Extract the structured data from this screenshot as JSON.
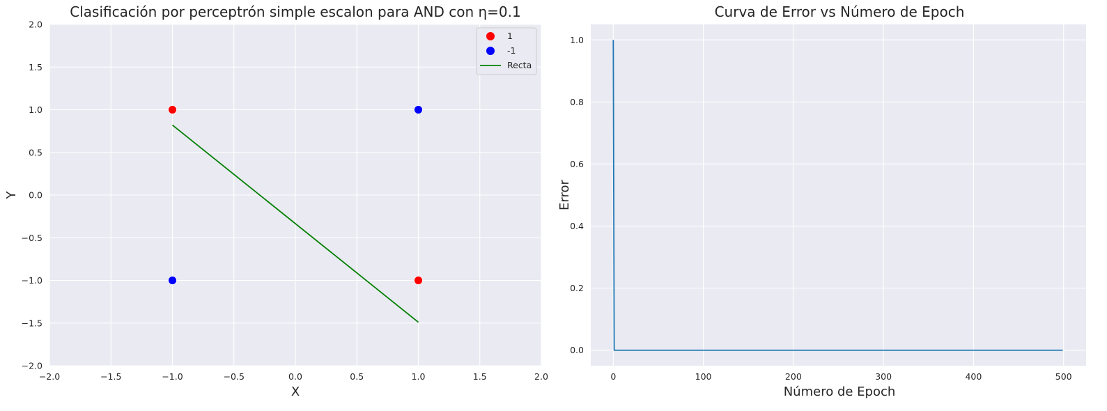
{
  "chart_data": [
    {
      "type": "scatter",
      "title": "Clasificación por perceptrón simple escalon para AND con η=0.1",
      "xlabel": "X",
      "ylabel": "Y",
      "xlim": [
        -2.0,
        2.0
      ],
      "ylim": [
        -2.0,
        2.0
      ],
      "xticks": [
        -2.0,
        -1.5,
        -1.0,
        -0.5,
        0.0,
        0.5,
        1.0,
        1.5,
        2.0
      ],
      "yticks": [
        -2.0,
        -1.5,
        -1.0,
        -0.5,
        0.0,
        0.5,
        1.0,
        1.5,
        2.0
      ],
      "xtick_labels": [
        "−2.0",
        "−1.5",
        "−1.0",
        "−0.5",
        "0.0",
        "0.5",
        "1.0",
        "1.5",
        "2.0"
      ],
      "ytick_labels": [
        "−2.0",
        "−1.5",
        "−1.0",
        "−0.5",
        "0.0",
        "0.5",
        "1.0",
        "1.5",
        "2.0"
      ],
      "grid": true,
      "legend_position": "top-right",
      "series": [
        {
          "name": "1",
          "kind": "points",
          "color": "#ff0000",
          "points": [
            [
              -1,
              1
            ],
            [
              1,
              -1
            ]
          ]
        },
        {
          "name": "-1",
          "kind": "points",
          "color": "#0000ff",
          "points": [
            [
              -1,
              -1
            ],
            [
              1,
              1
            ]
          ]
        },
        {
          "name": "Recta",
          "kind": "line",
          "color": "#008000",
          "points": [
            [
              -1,
              0.82
            ],
            [
              1,
              -1.49
            ]
          ]
        }
      ]
    },
    {
      "type": "line",
      "title": "Curva de Error vs Número de Epoch",
      "xlabel": "Número de Epoch",
      "ylabel": "Error",
      "xlim": [
        -25,
        525
      ],
      "ylim": [
        -0.05,
        1.05
      ],
      "xticks": [
        0,
        100,
        200,
        300,
        400,
        500
      ],
      "yticks": [
        0.0,
        0.2,
        0.4,
        0.6,
        0.8,
        1.0
      ],
      "xtick_labels": [
        "0",
        "100",
        "200",
        "300",
        "400",
        "500"
      ],
      "ytick_labels": [
        "0.0",
        "0.2",
        "0.4",
        "0.6",
        "0.8",
        "1.0"
      ],
      "grid": true,
      "series": [
        {
          "kind": "line",
          "color": "#1f77b4",
          "points": [
            [
              0,
              1.0
            ],
            [
              1,
              0.0
            ],
            [
              499,
              0.0
            ]
          ]
        }
      ]
    }
  ],
  "style": {
    "axes_background": "#eaeaf2",
    "grid_color": "#ffffff",
    "text_color": "#262626"
  }
}
